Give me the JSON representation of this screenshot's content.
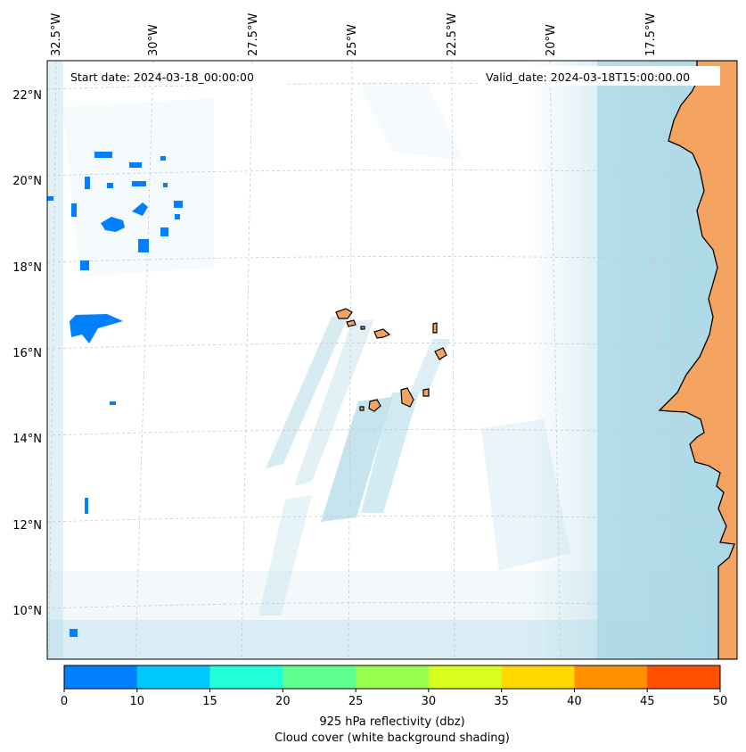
{
  "map": {
    "start_label": "Start date: 2024-03-18_00:00:00",
    "valid_label": "Valid_date: 2024-03-18T15:00:00.00",
    "lon_labels": [
      "32.5°W",
      "30°W",
      "27.5°W",
      "25°W",
      "22.5°W",
      "20°W",
      "17.5°W"
    ],
    "lat_labels": [
      "22°N",
      "20°N",
      "18°N",
      "16°N",
      "14°N",
      "12°N",
      "10°N"
    ],
    "colors": {
      "land": "#f4a460",
      "cloud": "#add8e6",
      "coast": "#000000",
      "grid": "#c8c8c8"
    }
  },
  "colorbar": {
    "ticks": [
      "0",
      "10",
      "15",
      "20",
      "25",
      "30",
      "35",
      "40",
      "45",
      "50"
    ],
    "colors": [
      "#0080ff",
      "#00c8ff",
      "#20ffd8",
      "#60ff90",
      "#98ff50",
      "#d8ff20",
      "#ffd800",
      "#ff9000",
      "#ff5000"
    ],
    "label_line1": "925 hPa reflectivity (dbz)",
    "label_line2": "Cloud cover (white background shading)"
  }
}
